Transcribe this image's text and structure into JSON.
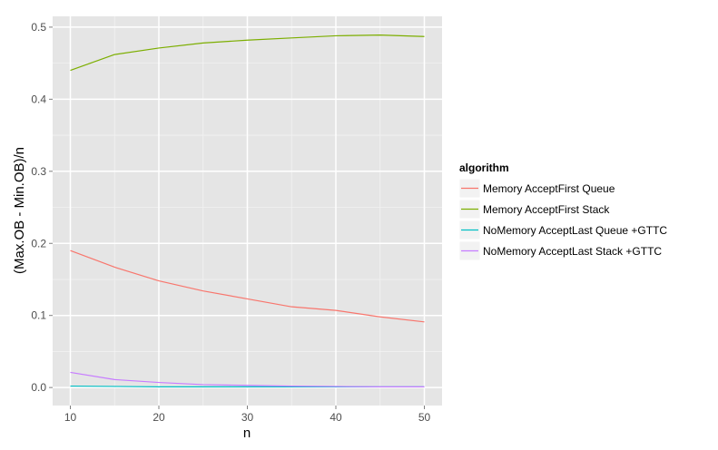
{
  "chart_data": {
    "type": "line",
    "xlabel": "n",
    "ylabel": "(Max.OB - Min.OB)/n",
    "xlim": [
      8,
      52
    ],
    "ylim": [
      -0.025,
      0.515
    ],
    "x_ticks": [
      10,
      20,
      30,
      40,
      50
    ],
    "y_ticks": [
      0.0,
      0.1,
      0.2,
      0.3,
      0.4,
      0.5
    ],
    "x_tick_labels": [
      "10",
      "20",
      "30",
      "40",
      "50"
    ],
    "y_tick_labels": [
      "0.0",
      "0.1",
      "0.2",
      "0.3",
      "0.4",
      "0.5"
    ],
    "grid": true,
    "legend": {
      "title": "algorithm",
      "position": "right"
    },
    "x": [
      10,
      15,
      20,
      25,
      30,
      35,
      40,
      45,
      50
    ],
    "series": [
      {
        "name": "Memory AcceptFirst Queue",
        "color": "#F8766D",
        "values": [
          0.19,
          0.167,
          0.148,
          0.134,
          0.123,
          0.112,
          0.107,
          0.098,
          0.091
        ]
      },
      {
        "name": "Memory AcceptFirst Stack",
        "color": "#7CAE00",
        "values": [
          0.44,
          0.462,
          0.471,
          0.478,
          0.482,
          0.485,
          0.488,
          0.489,
          0.487
        ]
      },
      {
        "name": "NoMemory AcceptLast Queue +GTTC",
        "color": "#00BFC4",
        "values": [
          0.002,
          0.0015,
          0.001,
          0.001,
          0.001,
          0.001,
          0.001,
          0.001,
          0.001
        ]
      },
      {
        "name": "NoMemory AcceptLast Stack +GTTC",
        "color": "#C77CFF",
        "values": [
          0.021,
          0.011,
          0.007,
          0.004,
          0.003,
          0.002,
          0.0015,
          0.001,
          0.001
        ]
      }
    ]
  }
}
